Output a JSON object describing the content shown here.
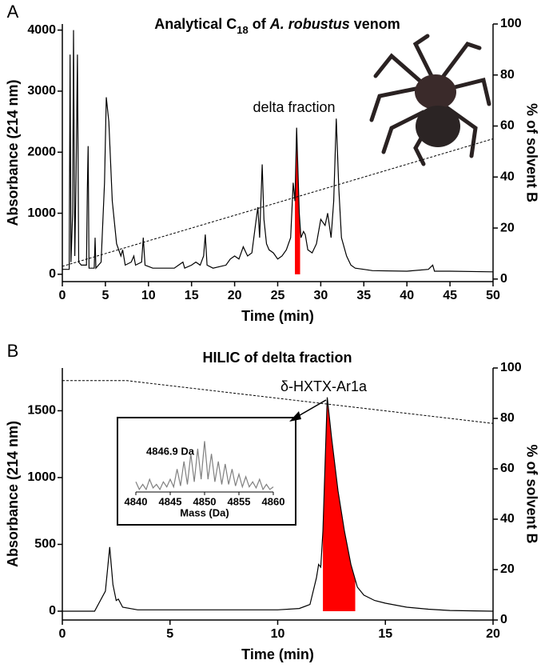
{
  "chart_data": [
    {
      "type": "line",
      "panel_label": "A",
      "title": [
        "Analytical C",
        "18",
        " of ",
        "A. robustus",
        " venom"
      ],
      "xlabel": "Time (min)",
      "ylabel": "Absorbance (214 nm)",
      "y2label": "% of solvent B",
      "xlim": [
        0,
        50
      ],
      "xticks": [
        0,
        5,
        10,
        15,
        20,
        25,
        30,
        35,
        40,
        45,
        50
      ],
      "ylim": [
        -120,
        4100
      ],
      "yticks": [
        0,
        1000,
        2000,
        3000,
        4000
      ],
      "y2lim": [
        -1,
        100
      ],
      "y2ticks": [
        0,
        20,
        40,
        60,
        80,
        100
      ],
      "series": [
        {
          "color": "#000000",
          "x": [
            0,
            0.8,
            0.9,
            1.0,
            1.2,
            1.3,
            1.45,
            1.6,
            1.75,
            1.9,
            2.2,
            2.8,
            2.9,
            3.0,
            3.1,
            3.7,
            3.8,
            3.9,
            4.5,
            4.9,
            5.1,
            5.4,
            5.8,
            6.3,
            6.8,
            7.0,
            7.3,
            8.0,
            8.3,
            8.5,
            9.2,
            9.4,
            9.6,
            10.5,
            12,
            13,
            13.5,
            14,
            14.2,
            15,
            15.5,
            16,
            16.4,
            16.6,
            16.8,
            17.5,
            19,
            19.5,
            20,
            20.5,
            21,
            21.5,
            22,
            22.5,
            22.7,
            22.9,
            23.2,
            23.4,
            23.7,
            24,
            24.5,
            25,
            25.5,
            26,
            26.5,
            26.8,
            27,
            27.2,
            27.5,
            27.7,
            28,
            28.2,
            28.5,
            29,
            29.5,
            30,
            30.5,
            30.8,
            31.2,
            31.5,
            31.8,
            32.1,
            32.4,
            33,
            33.5,
            34,
            35,
            36,
            40,
            42.5,
            43,
            43.2,
            45,
            50
          ],
          "values": [
            80,
            80,
            3600,
            200,
            1000,
            4000,
            300,
            1600,
            3600,
            200,
            150,
            150,
            1400,
            2100,
            100,
            100,
            600,
            100,
            200,
            1500,
            2900,
            2500,
            1200,
            500,
            300,
            400,
            150,
            200,
            300,
            150,
            200,
            600,
            150,
            100,
            100,
            100,
            150,
            200,
            100,
            150,
            200,
            150,
            300,
            650,
            150,
            100,
            150,
            250,
            300,
            250,
            450,
            300,
            350,
            900,
            1100,
            600,
            1800,
            900,
            500,
            400,
            350,
            250,
            300,
            400,
            600,
            1500,
            1200,
            2400,
            1000,
            600,
            700,
            650,
            400,
            350,
            500,
            900,
            800,
            1000,
            600,
            1200,
            2550,
            1400,
            600,
            300,
            150,
            100,
            80,
            60,
            50,
            80,
            150,
            50,
            50,
            40
          ]
        },
        {
          "color": "#000000",
          "axis": "y2",
          "dashed": true,
          "x": [
            0,
            50
          ],
          "values": [
            5,
            55
          ]
        }
      ],
      "highlight": {
        "x": [
          27.0,
          27.6
        ],
        "color": "#ff0000"
      },
      "annotation": "delta fraction"
    },
    {
      "type": "line",
      "panel_label": "B",
      "title": [
        "HILIC of delta fraction"
      ],
      "xlabel": "Time (min)",
      "ylabel": "Absorbance (214 nm)",
      "y2label": "% of solvent B",
      "xlim": [
        0,
        20
      ],
      "xticks": [
        0,
        5,
        10,
        15,
        20
      ],
      "ylim": [
        -66,
        1820
      ],
      "yticks": [
        0,
        500,
        1000,
        1500
      ],
      "y2lim": [
        0,
        100
      ],
      "y2ticks": [
        0,
        20,
        40,
        60,
        80,
        100
      ],
      "series": [
        {
          "color": "#000000",
          "x": [
            0,
            1.5,
            2.0,
            2.2,
            2.35,
            2.5,
            2.6,
            2.8,
            3.5,
            5,
            8,
            10,
            11,
            11.5,
            11.8,
            11.9,
            12.0,
            12.1,
            12.3,
            12.5,
            12.8,
            13.1,
            13.4,
            13.7,
            14,
            14.5,
            15,
            16,
            17,
            18,
            20
          ],
          "values": [
            0,
            0,
            150,
            480,
            200,
            80,
            90,
            30,
            10,
            10,
            10,
            10,
            20,
            50,
            250,
            350,
            330,
            600,
            1600,
            1300,
            900,
            600,
            350,
            180,
            120,
            80,
            60,
            30,
            15,
            5,
            0
          ]
        },
        {
          "color": "#000000",
          "axis": "y2",
          "dashed": true,
          "x": [
            0,
            3,
            20
          ],
          "values": [
            95,
            95,
            78
          ]
        }
      ],
      "highlight": {
        "x": [
          12.1,
          13.6
        ],
        "color": "#ff0000"
      },
      "annotation": "δ-HXTX-Ar1a"
    },
    {
      "type": "line",
      "xlabel": "Mass (Da)",
      "xlim": [
        4840,
        4860
      ],
      "xticks": [
        4840,
        4845,
        4850,
        4855,
        4860
      ],
      "ylim": [
        0,
        110
      ],
      "series": [
        {
          "color": "#808080",
          "x": [
            4840,
            4840.5,
            4841,
            4841.5,
            4842,
            4842.5,
            4843,
            4843.5,
            4844,
            4844.5,
            4845,
            4845.5,
            4846,
            4846.5,
            4847,
            4847.5,
            4848,
            4848.5,
            4849,
            4849.5,
            4850,
            4850.5,
            4851,
            4851.5,
            4852,
            4852.5,
            4853,
            4853.5,
            4854,
            4854.5,
            4855,
            4855.5,
            4856,
            4856.5,
            4857,
            4857.5,
            4858,
            4858.5,
            4859,
            4859.5,
            4860
          ],
          "values": [
            20,
            5,
            15,
            5,
            25,
            8,
            15,
            5,
            20,
            10,
            25,
            10,
            45,
            12,
            60,
            15,
            75,
            20,
            85,
            25,
            100,
            25,
            75,
            20,
            60,
            15,
            55,
            15,
            45,
            12,
            35,
            10,
            30,
            10,
            20,
            8,
            25,
            5,
            15,
            5,
            10
          ]
        }
      ],
      "annotation": "4846.9 Da"
    }
  ]
}
